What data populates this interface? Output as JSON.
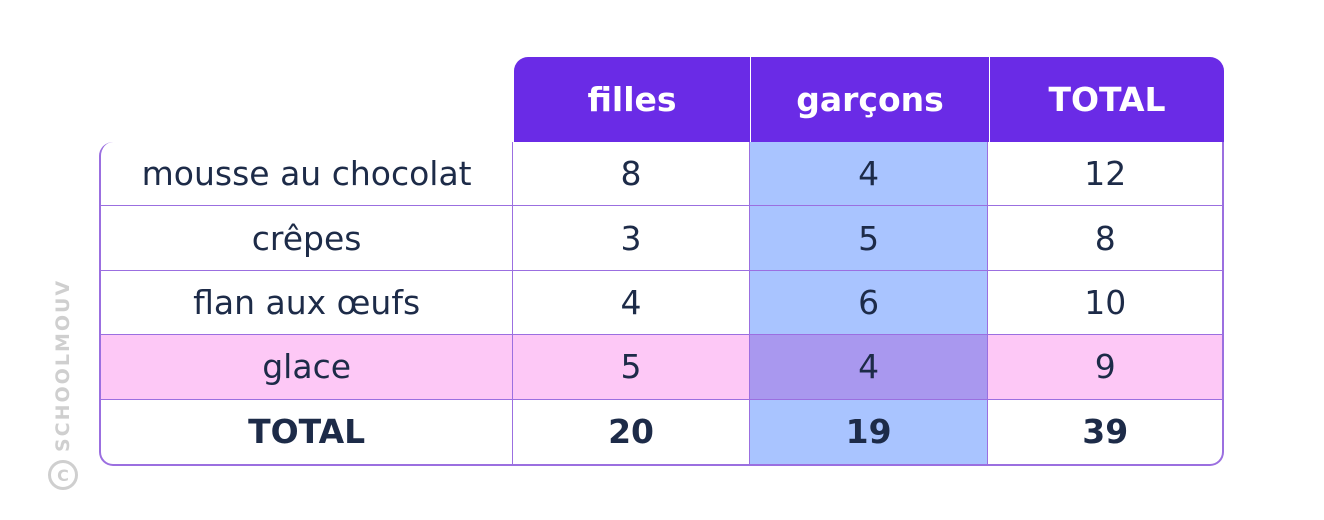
{
  "chart_data": {
    "type": "table",
    "columns": [
      "filles",
      "garçons",
      "TOTAL"
    ],
    "rows": [
      {
        "label": "mousse au chocolat",
        "values": [
          "8",
          "4",
          "12"
        ]
      },
      {
        "label": "crêpes",
        "values": [
          "3",
          "5",
          "8"
        ]
      },
      {
        "label": "flan aux œufs",
        "values": [
          "4",
          "6",
          "10"
        ]
      },
      {
        "label": "glace",
        "values": [
          "5",
          "4",
          "9"
        ]
      },
      {
        "label": "TOTAL",
        "values": [
          "20",
          "19",
          "39"
        ]
      }
    ],
    "highlighted_row": "glace",
    "highlighted_column": "garçons"
  },
  "watermark": {
    "text": "SCHOOLMOUV",
    "symbol": "C"
  },
  "colors": {
    "header": "#6a2be6",
    "border": "#9b6fe0",
    "column_highlight": "#a9c4ff",
    "row_highlight": "#fdc8f6",
    "intersection": "#a998ef",
    "text": "#1d2b48"
  }
}
